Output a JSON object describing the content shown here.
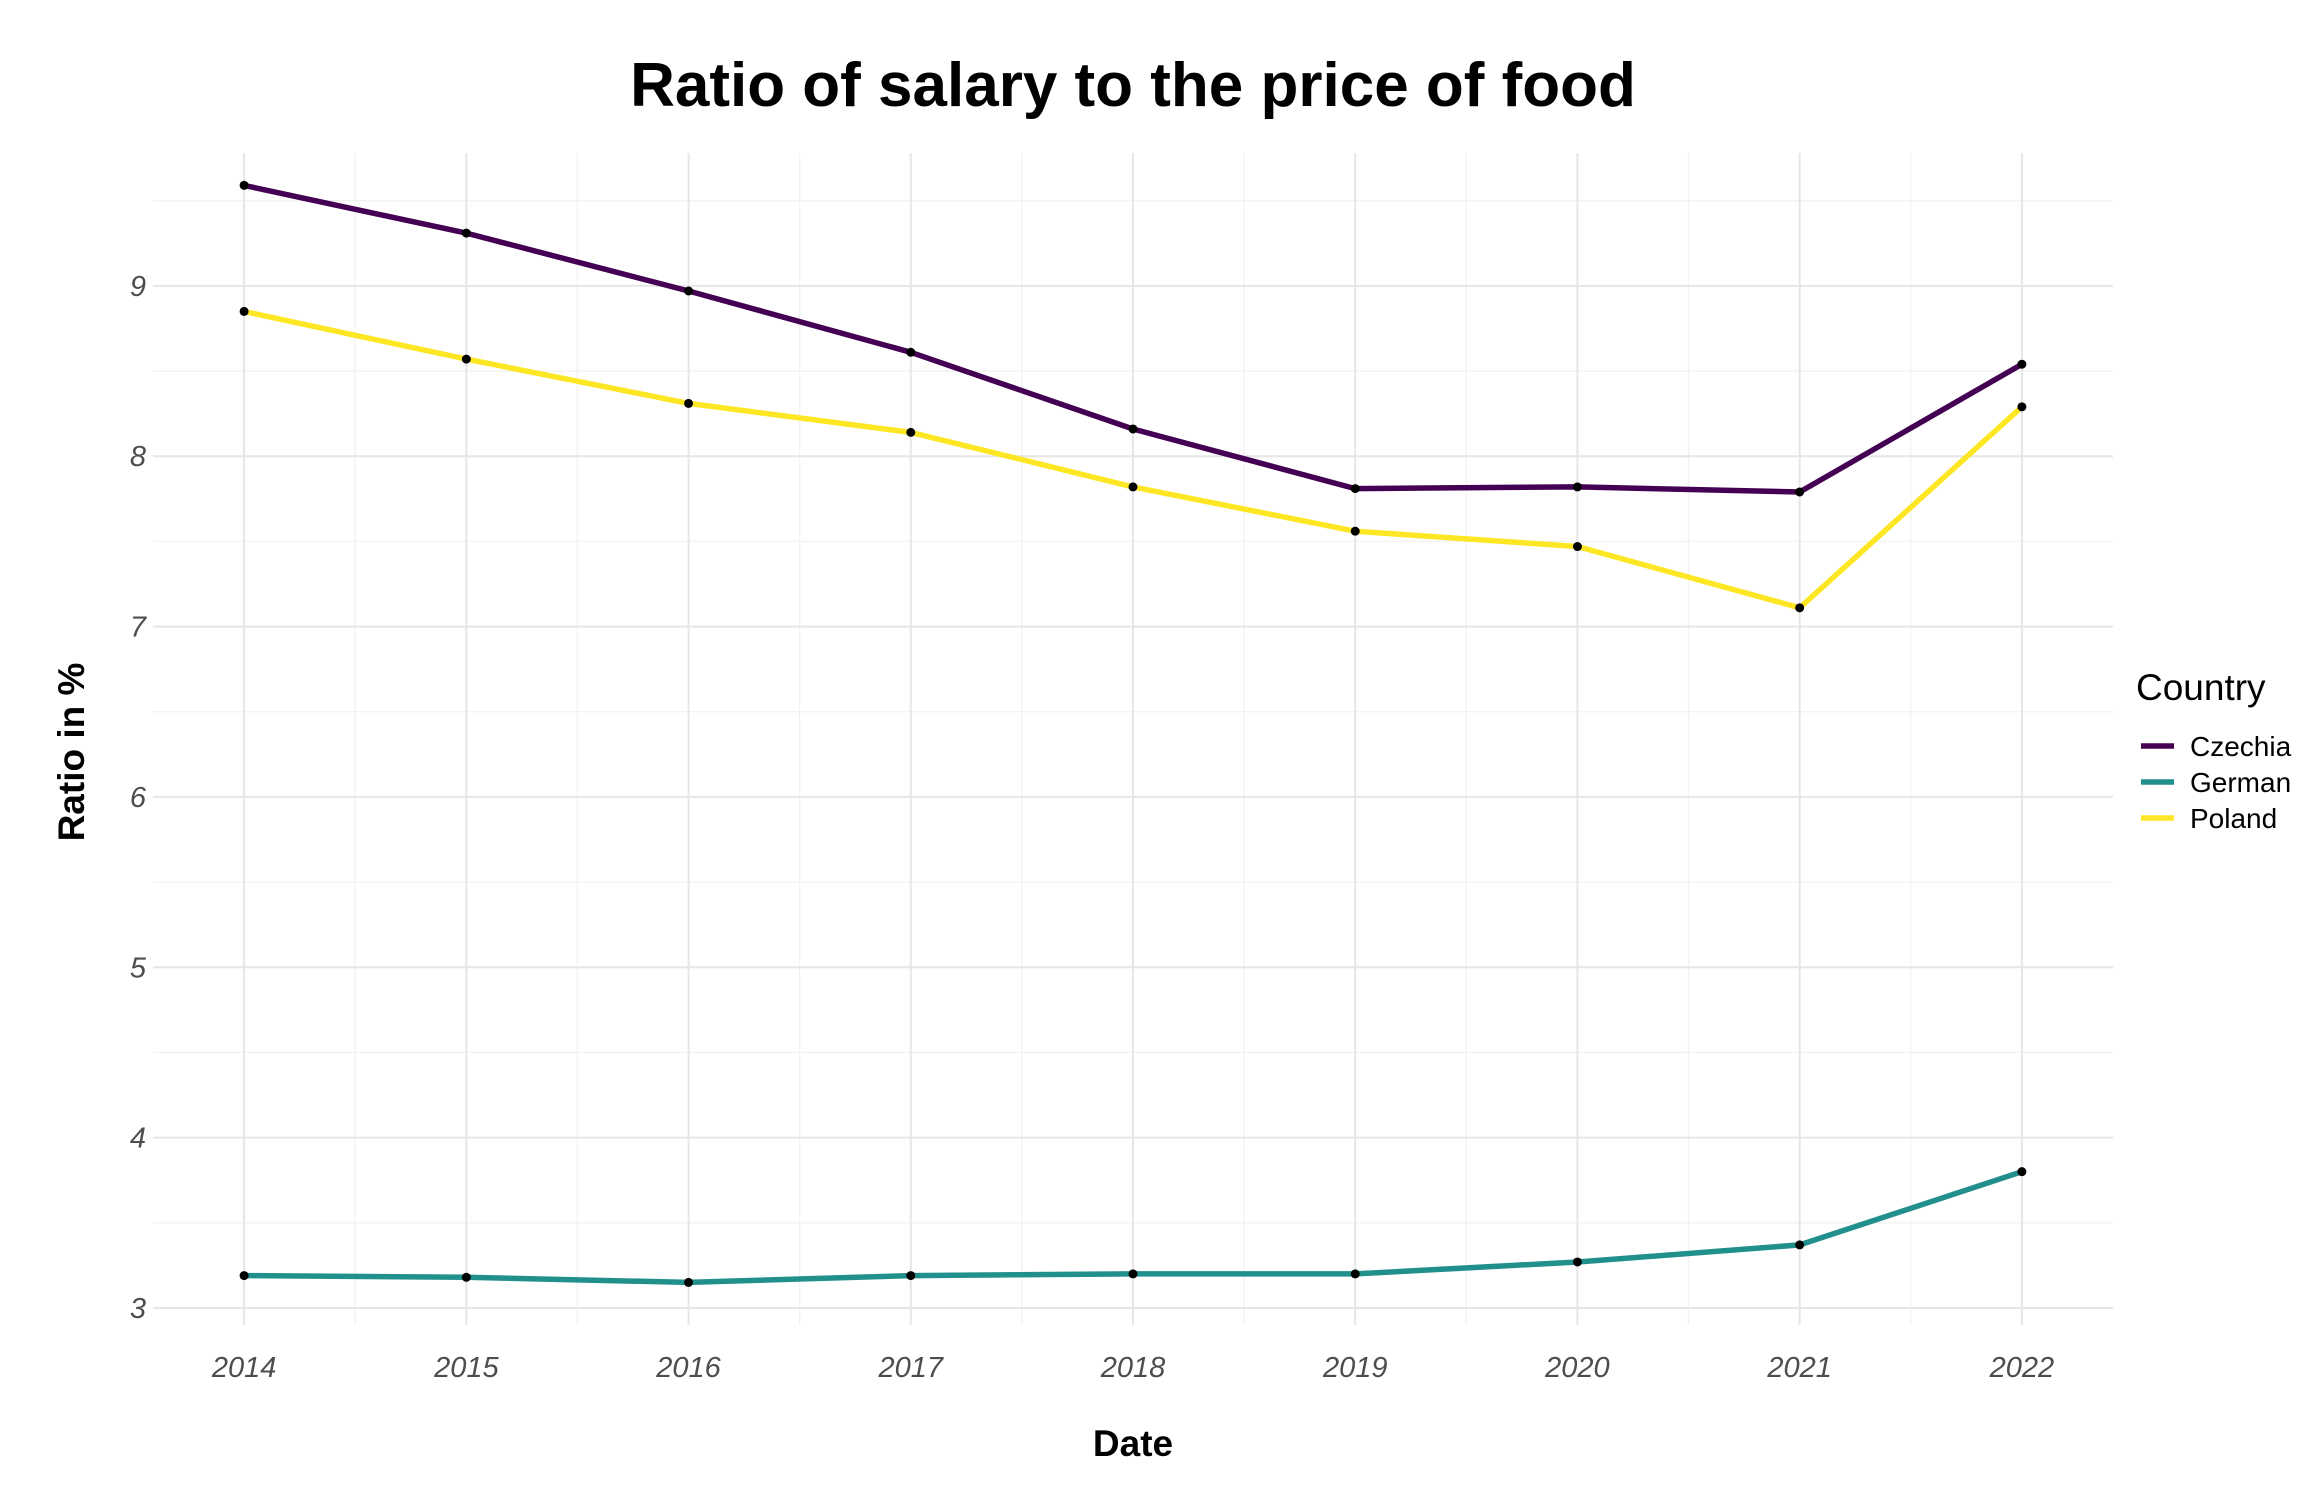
{
  "chart_data": {
    "type": "line",
    "title": "Ratio of salary to the price of food",
    "xlabel": "Date",
    "ylabel": "Ratio in %",
    "x": [
      2014,
      2015,
      2016,
      2017,
      2018,
      2019,
      2020,
      2021,
      2022
    ],
    "x_ticks": [
      "2014",
      "2015",
      "2016",
      "2017",
      "2018",
      "2019",
      "2020",
      "2021",
      "2022"
    ],
    "y_ticks": [
      "3",
      "4",
      "5",
      "6",
      "7",
      "8",
      "9"
    ],
    "xlim": [
      2013.59,
      2022.41
    ],
    "ylim": [
      2.9,
      9.78
    ],
    "grid": true,
    "legend": {
      "title": "Country",
      "position": "right"
    },
    "series": [
      {
        "name": "Czechia",
        "color": "#440154",
        "values": [
          9.59,
          9.31,
          8.97,
          8.61,
          8.16,
          7.81,
          7.82,
          7.79,
          8.54
        ]
      },
      {
        "name": "German",
        "color": "#21908c",
        "values": [
          3.19,
          3.18,
          3.15,
          3.19,
          3.2,
          3.2,
          3.27,
          3.37,
          3.8
        ]
      },
      {
        "name": "Poland",
        "color": "#fde725",
        "values": [
          8.85,
          8.57,
          8.31,
          8.14,
          7.82,
          7.56,
          7.47,
          7.11,
          8.29
        ]
      }
    ],
    "point_color": "#000000"
  }
}
